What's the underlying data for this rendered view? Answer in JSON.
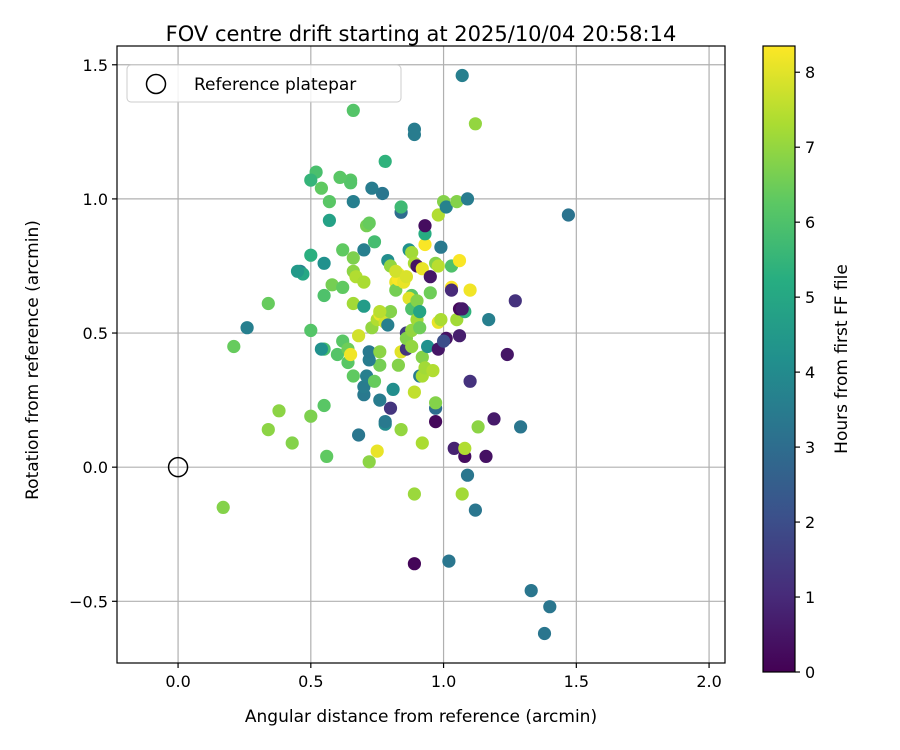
{
  "chart_data": {
    "type": "scatter",
    "title": "FOV centre drift starting at 2025/10/04 20:58:14",
    "xlabel": "Angular distance from reference (arcmin)",
    "ylabel": "Rotation from reference (arcmin)",
    "xlim": [
      -0.23,
      2.06
    ],
    "ylim": [
      -0.73,
      1.57
    ],
    "xticks": [
      0.0,
      0.5,
      1.0,
      1.5,
      2.0
    ],
    "xtick_labels": [
      "0.0",
      "0.5",
      "1.0",
      "1.5",
      "2.0"
    ],
    "yticks": [
      -0.5,
      0.0,
      0.5,
      1.0,
      1.5
    ],
    "ytick_labels": [
      "−0.5",
      "0.0",
      "0.5",
      "1.0",
      "1.5"
    ],
    "grid": true,
    "legend": {
      "position": "top-left",
      "label": "Reference platepar",
      "marker": "open-circle"
    },
    "reference_point": {
      "x": 0.0,
      "y": 0.0
    },
    "colorbar": {
      "label": "Hours from first FF file",
      "colormap": "viridis",
      "range": [
        0,
        8.35
      ],
      "ticks": [
        0,
        1,
        2,
        3,
        4,
        5,
        6,
        7,
        8
      ],
      "tick_labels": [
        "0",
        "1",
        "2",
        "3",
        "4",
        "5",
        "6",
        "7",
        "8"
      ]
    },
    "points": [
      [
        0.89,
        -0.36,
        0.1
      ],
      [
        1.02,
        -0.35,
        3.3
      ],
      [
        1.33,
        -0.46,
        3.3
      ],
      [
        1.4,
        -0.52,
        3.3
      ],
      [
        1.38,
        -0.62,
        3.3
      ],
      [
        0.17,
        -0.15,
        6.8
      ],
      [
        0.89,
        -0.1,
        7.1
      ],
      [
        1.07,
        -0.1,
        7.2
      ],
      [
        1.09,
        -0.03,
        3.3
      ],
      [
        1.12,
        -0.16,
        3.3
      ],
      [
        1.08,
        0.04,
        0.3
      ],
      [
        1.16,
        0.04,
        0.4
      ],
      [
        1.04,
        0.07,
        0.8
      ],
      [
        1.08,
        0.07,
        7.4
      ],
      [
        0.92,
        0.09,
        7.3
      ],
      [
        0.75,
        0.06,
        8.1
      ],
      [
        0.72,
        0.02,
        6.9
      ],
      [
        0.56,
        0.04,
        6.3
      ],
      [
        0.43,
        0.09,
        6.8
      ],
      [
        0.34,
        0.14,
        6.9
      ],
      [
        0.38,
        0.21,
        6.9
      ],
      [
        0.5,
        0.19,
        6.7
      ],
      [
        0.55,
        0.23,
        6.2
      ],
      [
        0.68,
        0.12,
        3.3
      ],
      [
        0.78,
        0.16,
        4.0
      ],
      [
        0.78,
        0.17,
        3.4
      ],
      [
        0.8,
        0.22,
        1.3
      ],
      [
        0.76,
        0.25,
        3.5
      ],
      [
        0.84,
        0.14,
        7.0
      ],
      [
        0.97,
        0.17,
        0.2
      ],
      [
        0.97,
        0.22,
        3.0
      ],
      [
        0.97,
        0.24,
        6.8
      ],
      [
        1.13,
        0.15,
        6.9
      ],
      [
        1.19,
        0.18,
        0.6
      ],
      [
        1.29,
        0.15,
        3.3
      ],
      [
        0.7,
        0.27,
        3.4
      ],
      [
        0.7,
        0.3,
        3.5
      ],
      [
        0.71,
        0.34,
        3.6
      ],
      [
        0.66,
        0.34,
        6.3
      ],
      [
        0.74,
        0.32,
        6.4
      ],
      [
        0.76,
        0.38,
        6.6
      ],
      [
        0.72,
        0.4,
        3.5
      ],
      [
        0.72,
        0.43,
        3.4
      ],
      [
        0.64,
        0.39,
        6.2
      ],
      [
        0.6,
        0.42,
        6.1
      ],
      [
        0.55,
        0.44,
        5.9
      ],
      [
        0.54,
        0.44,
        4.2
      ],
      [
        0.5,
        0.51,
        6.1
      ],
      [
        0.62,
        0.47,
        6.2
      ],
      [
        0.64,
        0.44,
        6.5
      ],
      [
        0.65,
        0.42,
        8.2
      ],
      [
        0.68,
        0.49,
        7.8
      ],
      [
        0.76,
        0.43,
        6.9
      ],
      [
        0.81,
        0.29,
        4.1
      ],
      [
        0.83,
        0.38,
        6.8
      ],
      [
        0.84,
        0.43,
        8.0
      ],
      [
        0.86,
        0.44,
        1.3
      ],
      [
        0.86,
        0.5,
        1.5
      ],
      [
        0.86,
        0.48,
        6.8
      ],
      [
        0.88,
        0.45,
        7.0
      ],
      [
        0.89,
        0.28,
        7.6
      ],
      [
        0.91,
        0.34,
        3.5
      ],
      [
        0.92,
        0.34,
        7.3
      ],
      [
        0.92,
        0.41,
        6.8
      ],
      [
        0.93,
        0.37,
        7.2
      ],
      [
        0.94,
        0.45,
        4.2
      ],
      [
        0.96,
        0.36,
        7.4
      ],
      [
        0.98,
        0.44,
        0.5
      ],
      [
        0.98,
        0.54,
        8.1
      ],
      [
        1.01,
        0.48,
        0.4
      ],
      [
        1.0,
        0.47,
        2.0
      ],
      [
        1.05,
        0.55,
        7.2
      ],
      [
        1.06,
        0.49,
        0.7
      ],
      [
        1.08,
        0.58,
        5.4
      ],
      [
        1.1,
        0.32,
        1.2
      ],
      [
        1.17,
        0.55,
        3.6
      ],
      [
        1.24,
        0.42,
        0.5
      ],
      [
        1.27,
        0.62,
        1.2
      ],
      [
        1.47,
        0.94,
        3.2
      ],
      [
        0.21,
        0.45,
        6.4
      ],
      [
        0.26,
        0.52,
        3.6
      ],
      [
        0.34,
        0.61,
        6.4
      ],
      [
        0.46,
        0.73,
        3.6
      ],
      [
        0.47,
        0.72,
        5.0
      ],
      [
        0.5,
        0.79,
        5.3
      ],
      [
        0.55,
        0.76,
        4.2
      ],
      [
        0.55,
        0.64,
        6.0
      ],
      [
        0.58,
        0.68,
        6.6
      ],
      [
        0.62,
        0.67,
        6.3
      ],
      [
        0.66,
        0.61,
        7.2
      ],
      [
        0.62,
        0.81,
        6.3
      ],
      [
        0.66,
        0.78,
        6.7
      ],
      [
        0.66,
        0.73,
        6.9
      ],
      [
        0.67,
        0.71,
        7.4
      ],
      [
        0.7,
        0.69,
        7.3
      ],
      [
        0.7,
        0.81,
        3.6
      ],
      [
        0.71,
        0.9,
        6.6
      ],
      [
        0.72,
        0.91,
        6.4
      ],
      [
        0.74,
        0.84,
        5.8
      ],
      [
        0.7,
        0.6,
        4.6
      ],
      [
        0.73,
        0.52,
        7.0
      ],
      [
        0.75,
        0.55,
        7.4
      ],
      [
        0.76,
        0.57,
        8.1
      ],
      [
        0.78,
        0.54,
        7.8
      ],
      [
        0.79,
        0.53,
        3.6
      ],
      [
        0.8,
        0.58,
        6.8
      ],
      [
        0.79,
        0.77,
        4.1
      ],
      [
        0.8,
        0.75,
        7.0
      ],
      [
        0.82,
        0.69,
        8.1
      ],
      [
        0.82,
        0.66,
        6.6
      ],
      [
        0.83,
        0.72,
        8.2
      ],
      [
        0.83,
        0.7,
        8.3
      ],
      [
        0.85,
        0.69,
        8.1
      ],
      [
        0.84,
        0.95,
        3.0
      ],
      [
        0.84,
        0.97,
        5.7
      ],
      [
        0.87,
        0.81,
        4.2
      ],
      [
        0.88,
        0.8,
        7.2
      ],
      [
        0.88,
        0.64,
        6.2
      ],
      [
        0.87,
        0.63,
        8.0
      ],
      [
        0.88,
        0.59,
        6.0
      ],
      [
        0.88,
        0.51,
        7.0
      ],
      [
        0.89,
        0.76,
        7.3
      ],
      [
        0.9,
        0.75,
        0.4
      ],
      [
        0.9,
        0.62,
        6.8
      ],
      [
        0.9,
        0.55,
        7.2
      ],
      [
        0.91,
        0.58,
        4.9
      ],
      [
        0.91,
        0.52,
        6.5
      ],
      [
        0.92,
        0.74,
        8.1
      ],
      [
        0.93,
        0.83,
        8.3
      ],
      [
        0.93,
        0.87,
        5.2
      ],
      [
        0.93,
        0.9,
        0.3
      ],
      [
        0.95,
        0.71,
        0.5
      ],
      [
        0.97,
        0.76,
        6.8
      ],
      [
        0.98,
        0.75,
        7.5
      ],
      [
        0.98,
        0.94,
        7.4
      ],
      [
        0.99,
        0.82,
        3.4
      ],
      [
        1.0,
        0.99,
        6.8
      ],
      [
        1.01,
        0.97,
        3.7
      ],
      [
        1.03,
        0.67,
        8.4
      ],
      [
        1.03,
        0.75,
        6.0
      ],
      [
        1.03,
        0.66,
        1.0
      ],
      [
        1.05,
        0.99,
        6.8
      ],
      [
        1.06,
        0.77,
        8.3
      ],
      [
        1.06,
        0.59,
        0.2
      ],
      [
        1.07,
        0.59,
        0.6
      ],
      [
        1.09,
        1.0,
        3.5
      ],
      [
        1.1,
        0.66,
        8.2
      ],
      [
        1.12,
        1.28,
        7.0
      ],
      [
        1.07,
        1.46,
        3.6
      ],
      [
        0.89,
        1.26,
        3.5
      ],
      [
        0.89,
        1.24,
        3.5
      ],
      [
        0.77,
        1.02,
        3.3
      ],
      [
        0.78,
        1.14,
        5.4
      ],
      [
        0.73,
        1.04,
        3.5
      ],
      [
        0.66,
        1.33,
        6.1
      ],
      [
        0.65,
        1.07,
        6.2
      ],
      [
        0.65,
        1.06,
        6.1
      ],
      [
        0.66,
        0.99,
        3.6
      ],
      [
        0.61,
        1.08,
        6.2
      ],
      [
        0.57,
        0.99,
        6.2
      ],
      [
        0.57,
        0.92,
        4.8
      ],
      [
        0.52,
        1.1,
        5.9
      ],
      [
        0.5,
        1.07,
        5.5
      ],
      [
        0.54,
        1.04,
        6.3
      ],
      [
        0.45,
        0.73,
        4.5
      ],
      [
        0.76,
        0.58,
        7.5
      ],
      [
        0.82,
        0.73,
        7.8
      ],
      [
        0.86,
        0.71,
        7.9
      ],
      [
        0.95,
        0.65,
        6.5
      ],
      [
        0.99,
        0.55,
        7.3
      ]
    ]
  }
}
